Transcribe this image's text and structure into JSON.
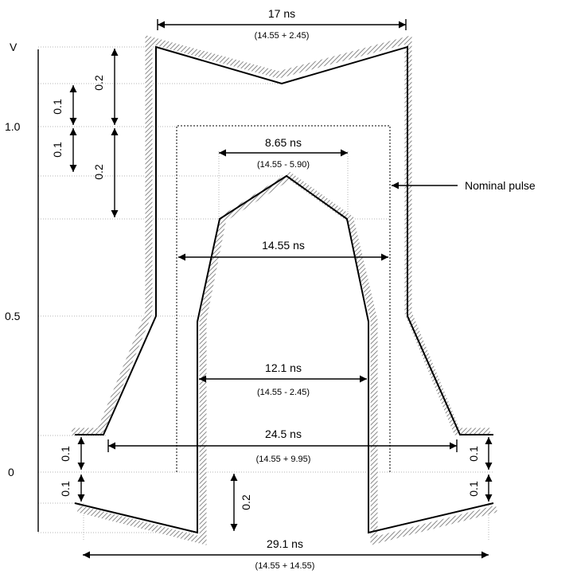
{
  "axis": {
    "unit": "V",
    "ticks": [
      {
        "label": "1.0",
        "value": 1.0
      },
      {
        "label": "0.5",
        "value": 0.5
      },
      {
        "label": "0",
        "value": 0
      }
    ]
  },
  "dimensions": {
    "top_width": {
      "label": "17 ns",
      "formula": "(14.55 + 2.45)"
    },
    "peak_width": {
      "label": "8.65 ns",
      "formula": "(14.55 - 5.90)"
    },
    "nominal_width": {
      "label": "14.55 ns"
    },
    "mid_width": {
      "label": "12.1 ns",
      "formula": "(14.55 - 2.45)"
    },
    "base_width": {
      "label": "24.5 ns",
      "formula": "(14.55 + 9.95)"
    },
    "bottom_width": {
      "label": "29.1 ns",
      "formula": "(14.55 + 14.55)"
    }
  },
  "tolerances": {
    "overshoot_outer": "0.2",
    "overshoot_top_small": "0.1",
    "overshoot_bottom_small": "0.1",
    "inner_top": "0.2",
    "base_right_upper": "0.1",
    "base_left_upper": "0.1",
    "base_left_lower": "0.1",
    "base_right_lower": "0.1",
    "undershoot": "0.2"
  },
  "annotation": {
    "nominal_pulse": "Nominal pulse"
  }
}
